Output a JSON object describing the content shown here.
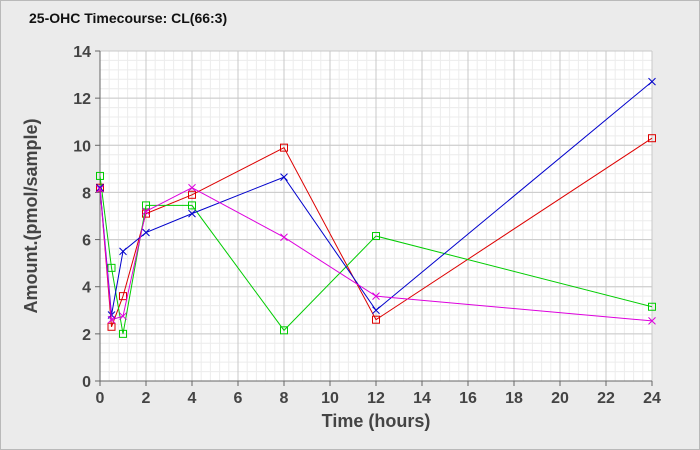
{
  "chart_data": {
    "type": "line",
    "title": "25-OHC Timecourse: CL(66:3)",
    "xlabel": "Time (hours)",
    "ylabel": "Amount.(pmol/sample)",
    "xlim": [
      0,
      24
    ],
    "ylim": [
      0,
      14
    ],
    "x_ticks": [
      0,
      2,
      4,
      6,
      8,
      10,
      12,
      14,
      16,
      18,
      20,
      22,
      24
    ],
    "y_ticks": [
      0,
      2,
      4,
      6,
      8,
      10,
      12,
      14
    ],
    "grid": true,
    "legend": "none",
    "series": [
      {
        "color": "#dd0000",
        "marker": "square",
        "x": [
          0,
          0.5,
          1,
          2,
          4,
          8,
          12,
          24
        ],
        "y": [
          8.2,
          2.3,
          3.6,
          7.1,
          7.9,
          9.9,
          2.6,
          10.3
        ]
      },
      {
        "color": "#00cc00",
        "marker": "square",
        "x": [
          0,
          0.5,
          1,
          2,
          4,
          8,
          12,
          24
        ],
        "y": [
          8.7,
          4.8,
          2.0,
          7.45,
          7.45,
          2.15,
          6.15,
          3.15
        ]
      },
      {
        "color": "#0000cc",
        "marker": "x",
        "x": [
          0,
          0.5,
          1,
          2,
          4,
          8,
          12,
          24
        ],
        "y": [
          8.2,
          2.8,
          5.5,
          6.3,
          7.1,
          8.65,
          3.0,
          12.7
        ]
      },
      {
        "color": "#dd00dd",
        "marker": "x",
        "x": [
          0,
          0.5,
          1,
          2,
          4,
          8,
          12,
          24
        ],
        "y": [
          8.15,
          2.6,
          2.75,
          7.2,
          8.2,
          6.1,
          3.6,
          2.55
        ]
      }
    ]
  }
}
